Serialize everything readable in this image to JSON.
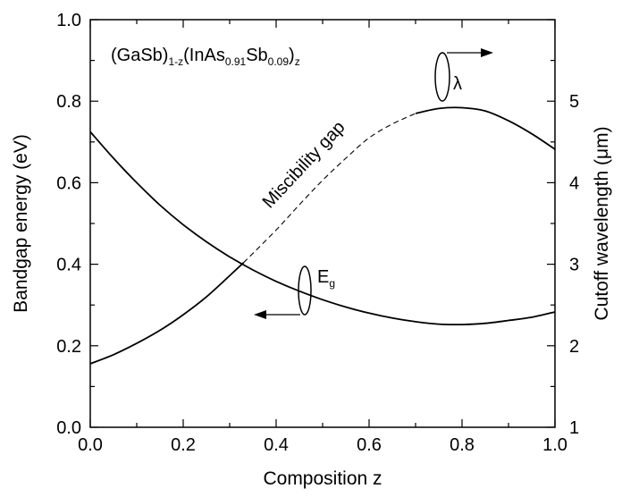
{
  "chart_data": {
    "type": "line",
    "xlabel": "Composition z",
    "ylabel_left": "Bandgap energy (eV)",
    "ylabel_right": "Cutoff wavelength (μm)",
    "xlim": [
      0.0,
      1.0
    ],
    "ylim_left": [
      0.0,
      1.0
    ],
    "ylim_right": [
      1,
      6
    ],
    "x_ticks": [
      "0.0",
      "0.2",
      "0.4",
      "0.6",
      "0.8",
      "1.0"
    ],
    "y_ticks_left": [
      "0.0",
      "0.2",
      "0.4",
      "0.6",
      "0.8",
      "1.0"
    ],
    "y_ticks_right": [
      "1",
      "2",
      "3",
      "4",
      "5"
    ],
    "grid": false,
    "formula": {
      "p1": "(GaSb)",
      "s1": "1-z",
      "p2": "(InAs",
      "s2": "0.91",
      "p3": "Sb",
      "s3": "0.09",
      "p4": ")",
      "s4": "z"
    },
    "annotations": {
      "miscibility": "Miscibility gap",
      "eg_main": "E",
      "eg_sub": "g",
      "lambda": "λ"
    },
    "series": [
      {
        "axis": "left",
        "style": "solid",
        "x": [
          0.0,
          0.05,
          0.1,
          0.15,
          0.2,
          0.25,
          0.3,
          0.35,
          0.4,
          0.45,
          0.5,
          0.55,
          0.6,
          0.65,
          0.7,
          0.75,
          0.8,
          0.85,
          0.9,
          0.95,
          1.0
        ],
        "y": [
          0.725,
          0.66,
          0.6,
          0.545,
          0.497,
          0.455,
          0.418,
          0.386,
          0.358,
          0.334,
          0.313,
          0.295,
          0.28,
          0.268,
          0.259,
          0.253,
          0.252,
          0.255,
          0.262,
          0.27,
          0.283
        ]
      },
      {
        "axis": "right",
        "style": "solid",
        "x": [
          0.0,
          0.05,
          0.1,
          0.15,
          0.2,
          0.25,
          0.3,
          0.33
        ],
        "y": [
          1.78,
          1.89,
          2.03,
          2.19,
          2.38,
          2.6,
          2.86,
          3.02
        ]
      },
      {
        "axis": "right",
        "style": "dashed",
        "x": [
          0.33,
          0.4,
          0.45,
          0.5,
          0.55,
          0.6,
          0.65,
          0.7
        ],
        "y": [
          3.02,
          3.42,
          3.73,
          4.03,
          4.3,
          4.55,
          4.72,
          4.85
        ]
      },
      {
        "axis": "right",
        "style": "solid",
        "x": [
          0.7,
          0.75,
          0.8,
          0.85,
          0.9,
          0.95,
          1.0
        ],
        "y": [
          4.85,
          4.91,
          4.92,
          4.88,
          4.76,
          4.6,
          4.41
        ]
      }
    ]
  }
}
